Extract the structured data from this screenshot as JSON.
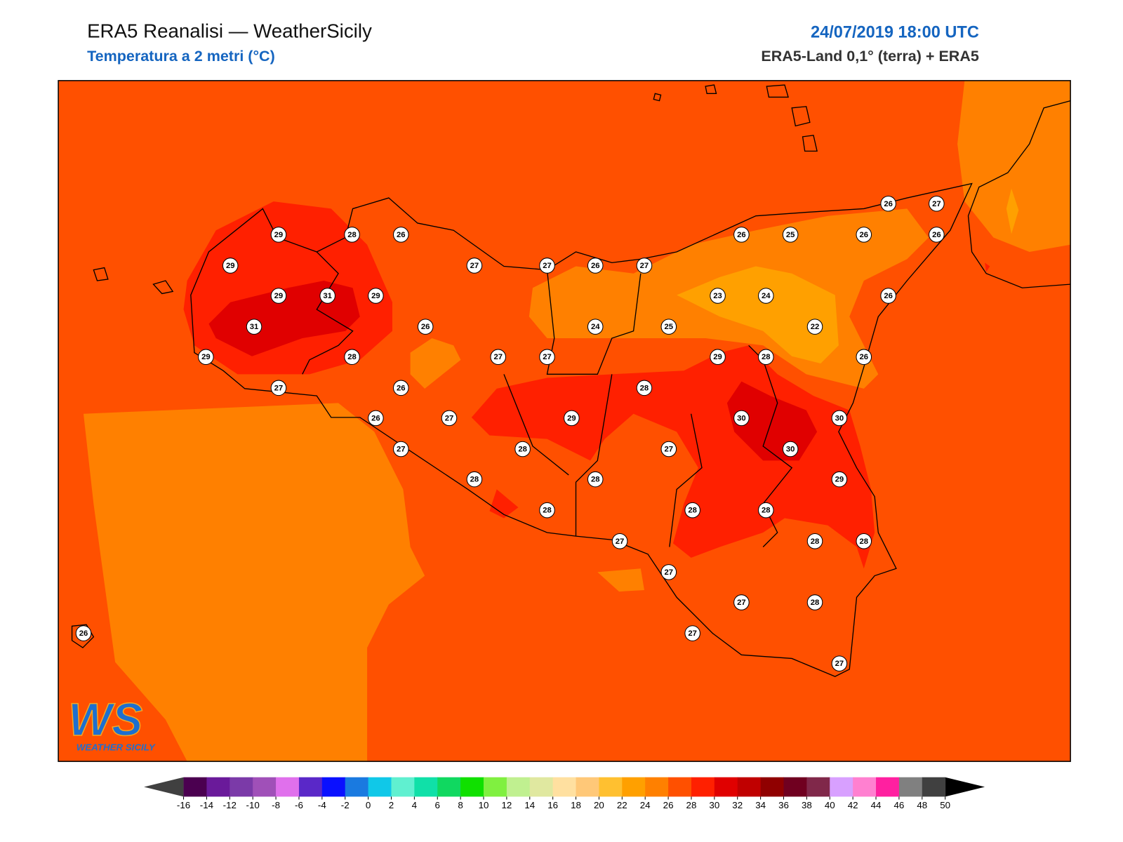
{
  "header": {
    "title": "ERA5 Reanalisi — WeatherSicily",
    "subtitle": "Temperatura a 2 metri (°C)",
    "date": "24/07/2019 18:00 UTC",
    "source": "ERA5-Land 0,1° (terra) + ERA5"
  },
  "stations": [
    29,
    28,
    26,
    29,
    27,
    27,
    26,
    27,
    26,
    25,
    26,
    26,
    27,
    26,
    29,
    31,
    29,
    23,
    24,
    26,
    31,
    26,
    24,
    25,
    22,
    29,
    28,
    27,
    27,
    29,
    28,
    26,
    27,
    26,
    28,
    26,
    27,
    29,
    30,
    30,
    27,
    28,
    27,
    30,
    28,
    28,
    29,
    28,
    28,
    28,
    27,
    28,
    28,
    27,
    27,
    28,
    26,
    27,
    27
  ],
  "colorbar": {
    "ticks": [
      -16,
      -14,
      -12,
      -10,
      -8,
      -6,
      -4,
      -2,
      0,
      2,
      4,
      6,
      8,
      10,
      12,
      14,
      16,
      18,
      20,
      22,
      24,
      26,
      28,
      30,
      32,
      34,
      36,
      38,
      40,
      42,
      44,
      46,
      48,
      50
    ],
    "colors": [
      "#4b0050",
      "#6a1a9a",
      "#7b3aa8",
      "#a050b8",
      "#e070ec",
      "#5a28c8",
      "#0a10ff",
      "#1a7ae0",
      "#10c8e8",
      "#60f0d0",
      "#10e0a8",
      "#10d860",
      "#10e000",
      "#80f040",
      "#c0f090",
      "#e0e8a0",
      "#ffe0a0",
      "#ffc878",
      "#ffc030",
      "#ffa000",
      "#ff8000",
      "#ff5000",
      "#ff2000",
      "#e00000",
      "#c00000",
      "#900000",
      "#700020",
      "#80284a",
      "#d8a0ff",
      "#ff80d0",
      "#ff20a0",
      "#808080",
      "#404040"
    ],
    "extend_colors": [
      "#404040",
      "#000000"
    ]
  },
  "logo": {
    "mark": "WS",
    "text": "WEATHER SICILY"
  }
}
